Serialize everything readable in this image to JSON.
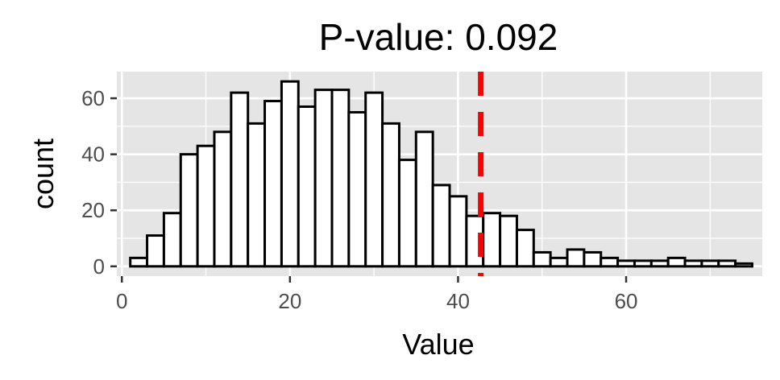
{
  "chart_data": {
    "type": "bar",
    "title": "P-value: 0.092",
    "xlabel": "Value",
    "ylabel": "count",
    "xlim": [
      -0.6,
      76.2
    ],
    "ylim": [
      -3.5,
      69.5
    ],
    "x_ticks": [
      0,
      20,
      40,
      60
    ],
    "y_ticks": [
      0,
      20,
      40,
      60
    ],
    "bin_start": 1,
    "bin_width": 2,
    "values": [
      3,
      11,
      19,
      40,
      43,
      48,
      62,
      51,
      59,
      66,
      57,
      63,
      63,
      55,
      62,
      51,
      38,
      48,
      29,
      25,
      18,
      19,
      18,
      13,
      5,
      3,
      6,
      5,
      3,
      2,
      2,
      2,
      3,
      2,
      2,
      2,
      1
    ],
    "reference_line": {
      "x": 42.7,
      "color": "#ff0000",
      "style": "dashed"
    },
    "grid": true,
    "background": "#e5e5e5",
    "bar_fill": "#ffffff",
    "bar_stroke": "#000000"
  }
}
